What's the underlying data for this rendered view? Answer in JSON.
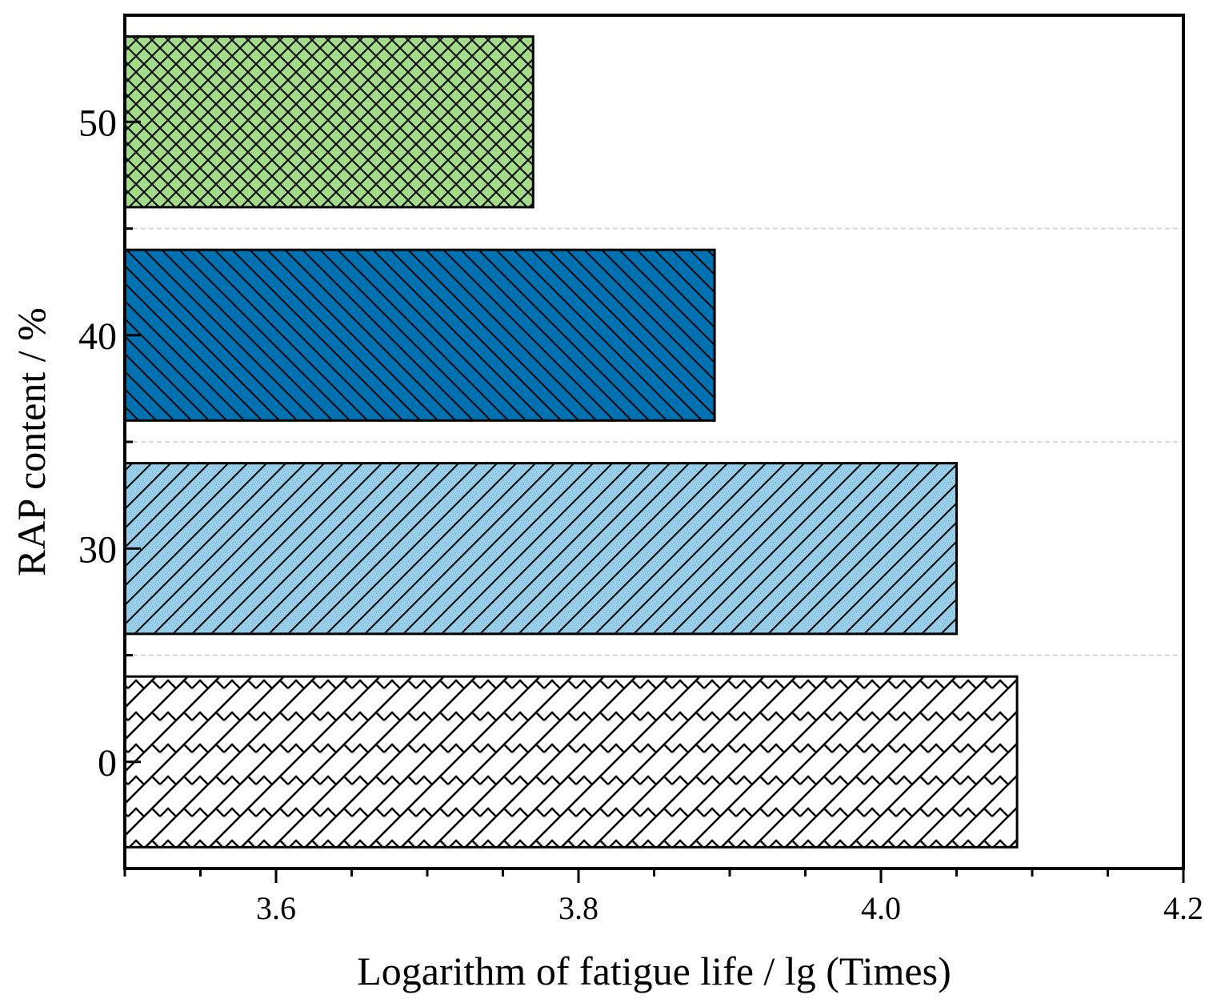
{
  "chart_data": {
    "type": "bar",
    "orientation": "horizontal",
    "title": "",
    "xlabel": "Logarithm of fatigue life / lg (Times)",
    "ylabel": "RAP content / %",
    "xlim": [
      3.5,
      4.2
    ],
    "xticks": [
      3.6,
      3.8,
      4.0,
      4.2
    ],
    "xtick_labels": [
      "3.6",
      "3.8",
      "4.0",
      "4.2"
    ],
    "categories": [
      "0",
      "30",
      "40",
      "50"
    ],
    "values": [
      4.09,
      4.05,
      3.89,
      3.77
    ],
    "bar_colors": [
      "#ffffff",
      "#96cce6",
      "#0072b2",
      "#a2db8a"
    ],
    "bar_patterns": [
      "brick-zigzag",
      "forward-diagonal",
      "back-diagonal",
      "crosshatch"
    ],
    "grid": {
      "x": false,
      "y": true,
      "style": "dashed"
    },
    "legend": "none"
  }
}
